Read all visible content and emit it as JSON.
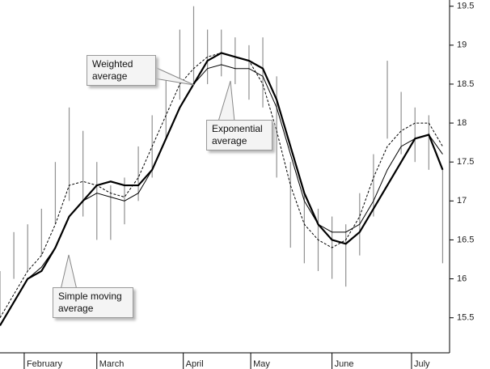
{
  "chart_data": {
    "type": "stock",
    "annotations": [
      "Weighted average",
      "Exponential average",
      "Simple moving average"
    ],
    "x": [
      0,
      4,
      8,
      12,
      16,
      20,
      24,
      28,
      32,
      36,
      40,
      44,
      48,
      52,
      56,
      60,
      64,
      68,
      72,
      76,
      80,
      84,
      88,
      92,
      96,
      100,
      104,
      108,
      112,
      116,
      120,
      124,
      128
    ],
    "high": [
      16.1,
      16.6,
      16.7,
      16.9,
      17.5,
      18.2,
      17.9,
      17.5,
      17.2,
      17.3,
      17.7,
      18.1,
      18.6,
      19.2,
      19.5,
      19.2,
      19.2,
      19.1,
      19.0,
      19.1,
      18.6,
      17.5,
      17.1,
      16.9,
      16.8,
      16.7,
      17.1,
      17.6,
      18.8,
      18.4,
      18.2,
      18.1,
      17.4
    ],
    "low": [
      15.5,
      16.0,
      16.1,
      16.3,
      16.7,
      17.0,
      16.8,
      16.5,
      16.5,
      16.7,
      17.0,
      17.3,
      17.8,
      18.3,
      18.5,
      18.5,
      18.6,
      18.5,
      18.3,
      18.2,
      17.3,
      16.4,
      16.2,
      16.1,
      16.0,
      15.9,
      16.3,
      16.8,
      17.8,
      17.6,
      17.5,
      17.4,
      16.2
    ],
    "bar_color": "#909090",
    "series": [
      {
        "name": "Simple moving average",
        "color": "#000000",
        "width": 1,
        "dash": false,
        "values": [
          15.4,
          15.7,
          16.0,
          16.15,
          16.4,
          16.8,
          17.0,
          17.1,
          17.05,
          17.0,
          17.1,
          17.4,
          17.8,
          18.2,
          18.5,
          18.7,
          18.75,
          18.7,
          18.7,
          18.6,
          18.2,
          17.6,
          17.0,
          16.7,
          16.6,
          16.6,
          16.7,
          17.0,
          17.4,
          17.7,
          17.8,
          17.85,
          17.6
        ]
      },
      {
        "name": "Weighted average",
        "color": "#000000",
        "width": 1,
        "dash": true,
        "values": [
          15.5,
          15.8,
          16.1,
          16.3,
          16.7,
          17.2,
          17.25,
          17.2,
          17.1,
          17.05,
          17.3,
          17.7,
          18.1,
          18.5,
          18.7,
          18.85,
          18.9,
          18.85,
          18.8,
          18.5,
          17.9,
          17.2,
          16.7,
          16.5,
          16.4,
          16.5,
          16.8,
          17.3,
          17.7,
          17.9,
          18.0,
          18.0,
          17.7
        ]
      },
      {
        "name": "Exponential average",
        "color": "#000000",
        "width": 2.2,
        "dash": false,
        "values": [
          15.4,
          15.7,
          16.0,
          16.1,
          16.4,
          16.8,
          17.0,
          17.2,
          17.25,
          17.2,
          17.2,
          17.4,
          17.8,
          18.2,
          18.5,
          18.8,
          18.9,
          18.85,
          18.8,
          18.7,
          18.3,
          17.7,
          17.1,
          16.7,
          16.5,
          16.45,
          16.6,
          16.9,
          17.2,
          17.5,
          17.8,
          17.85,
          17.4
        ]
      }
    ],
    "xlim": [
      0,
      130
    ],
    "xticks": [
      {
        "value": 7,
        "label": "February"
      },
      {
        "value": 28,
        "label": "March"
      },
      {
        "value": 53,
        "label": "April"
      },
      {
        "value": 72.5,
        "label": "May"
      },
      {
        "value": 96,
        "label": "June"
      },
      {
        "value": 119,
        "label": "July"
      }
    ],
    "ylim": [
      15.05,
      19.58
    ],
    "yticks": [
      15.5,
      16,
      16.5,
      17,
      17.5,
      18,
      18.5,
      19,
      19.5
    ]
  }
}
